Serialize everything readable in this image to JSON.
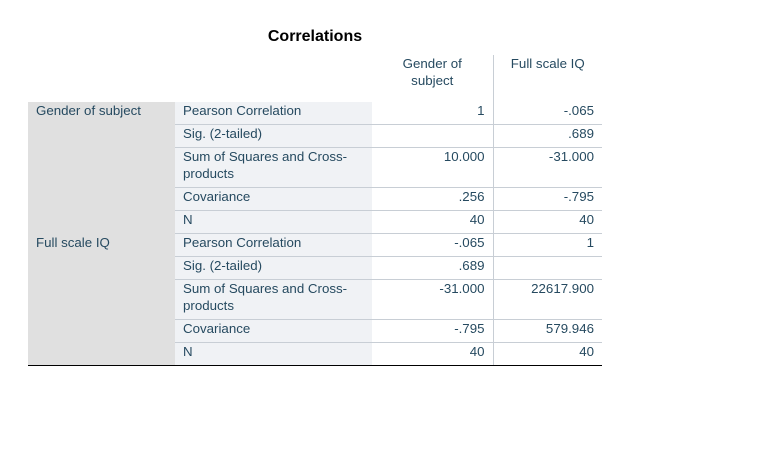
{
  "table": {
    "title": "Correlations",
    "columns": [
      "Gender of subject",
      "Full scale IQ"
    ],
    "groups": [
      {
        "label": "Gender of subject",
        "rows": [
          {
            "stat": "Pearson Correlation",
            "values": [
              "1",
              "-.065"
            ]
          },
          {
            "stat": "Sig. (2-tailed)",
            "values": [
              "",
              ".689"
            ]
          },
          {
            "stat": "Sum of Squares and Cross-products",
            "values": [
              "10.000",
              "-31.000"
            ]
          },
          {
            "stat": "Covariance",
            "values": [
              ".256",
              "-.795"
            ]
          },
          {
            "stat": "N",
            "values": [
              "40",
              "40"
            ]
          }
        ]
      },
      {
        "label": "Full scale IQ",
        "rows": [
          {
            "stat": "Pearson Correlation",
            "values": [
              "-.065",
              "1"
            ]
          },
          {
            "stat": "Sig. (2-tailed)",
            "values": [
              ".689",
              ""
            ]
          },
          {
            "stat": "Sum of Squares and Cross-products",
            "values": [
              "-31.000",
              "22617.900"
            ]
          },
          {
            "stat": "Covariance",
            "values": [
              "-.795",
              "579.946"
            ]
          },
          {
            "stat": "N",
            "values": [
              "40",
              "40"
            ]
          }
        ]
      }
    ]
  }
}
